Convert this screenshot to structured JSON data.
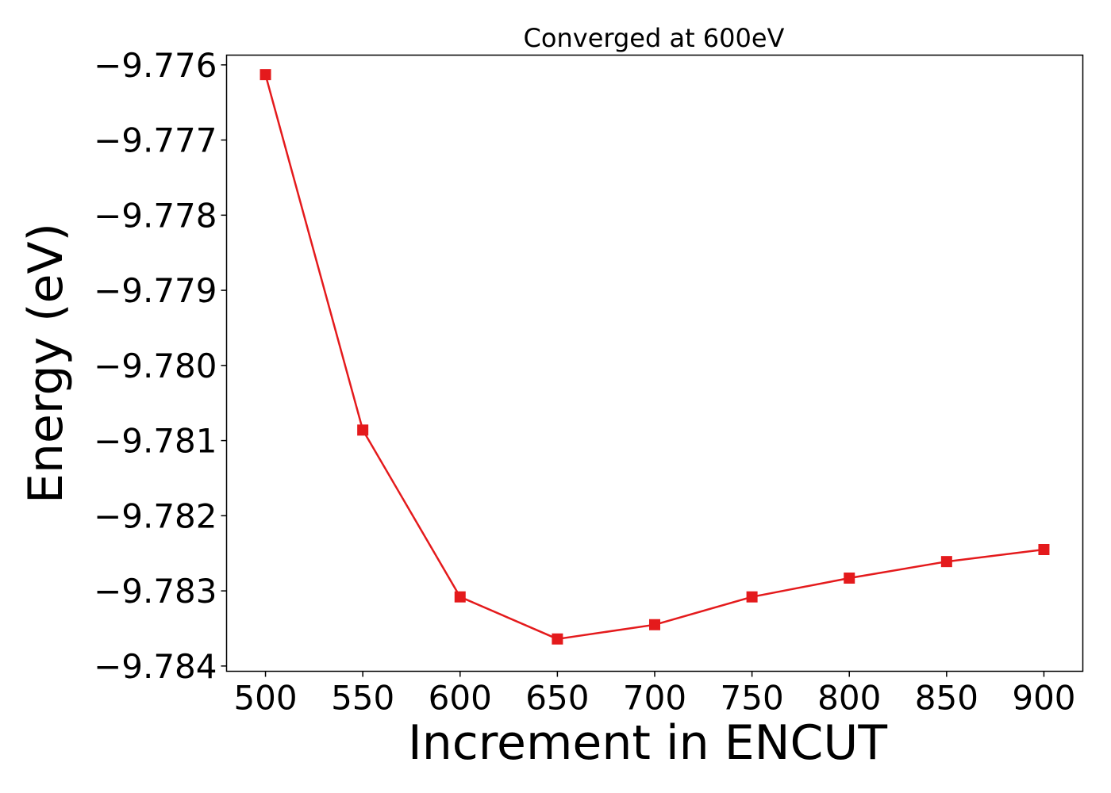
{
  "chart_data": {
    "type": "line",
    "title": "Converged at 600eV",
    "xlabel": "Increment in ENCUT",
    "ylabel": "Energy (eV)",
    "x": [
      500,
      550,
      600,
      650,
      700,
      750,
      800,
      850,
      900
    ],
    "series": [
      {
        "values": [
          -9.77613,
          -9.78086,
          -9.78308,
          -9.78364,
          -9.78345,
          -9.78308,
          -9.78283,
          -9.78261,
          -9.78245
        ],
        "color": "#e41a1c",
        "marker": "square"
      }
    ],
    "xticks": [
      500,
      550,
      600,
      650,
      700,
      750,
      800,
      850,
      900
    ],
    "xtick_labels": [
      "500",
      "550",
      "600",
      "650",
      "700",
      "750",
      "800",
      "850",
      "900"
    ],
    "yticks": [
      -9.776,
      -9.777,
      -9.778,
      -9.779,
      -9.78,
      -9.781,
      -9.782,
      -9.783,
      -9.784
    ],
    "ytick_labels": [
      "−9.776",
      "−9.777",
      "−9.778",
      "−9.779",
      "−9.780",
      "−9.781",
      "−9.782",
      "−9.783",
      "−9.784"
    ],
    "xlim": [
      480,
      920
    ],
    "ylim": [
      -9.78407,
      -9.77587
    ],
    "grid": false,
    "legend": "none"
  }
}
